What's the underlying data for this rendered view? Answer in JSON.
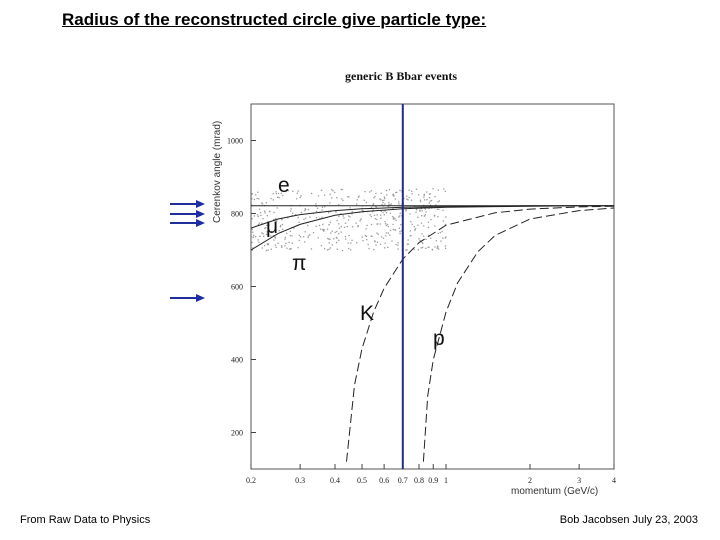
{
  "slide": {
    "title": "Radius of the reconstructed circle give particle type:",
    "footer_left": "From Raw Data to Physics",
    "footer_right": "Bob Jacobsen July 23, 2003"
  },
  "chart_data": {
    "type": "line",
    "title": "generic B Bbar events",
    "xlabel": "momentum (GeV/c)",
    "ylabel": "Cerenkov angle (mrad)",
    "x_scale": "log",
    "xlim": [
      0.2,
      4
    ],
    "ylim": [
      100,
      1100
    ],
    "x_ticks": [
      {
        "value": 0.2,
        "label": "0.2"
      },
      {
        "value": 0.3,
        "label": "0.3"
      },
      {
        "value": 0.4,
        "label": "0.4"
      },
      {
        "value": 0.5,
        "label": "0.5"
      },
      {
        "value": 0.6,
        "label": "0.6"
      },
      {
        "value": 0.7,
        "label": "0.7"
      },
      {
        "value": 0.8,
        "label": "0.8"
      },
      {
        "value": 0.9,
        "label": "0.9"
      },
      {
        "value": 1,
        "label": "1"
      },
      {
        "value": 2,
        "label": "2"
      },
      {
        "value": 3,
        "label": "3"
      },
      {
        "value": 4,
        "label": "4"
      }
    ],
    "y_ticks": [
      {
        "value": 200,
        "label": "200"
      },
      {
        "value": 400,
        "label": "400"
      },
      {
        "value": 600,
        "label": "600"
      },
      {
        "value": 800,
        "label": "800"
      },
      {
        "value": 1000,
        "label": "1000"
      }
    ],
    "series": [
      {
        "name": "e",
        "x": [
          0.2,
          0.3,
          0.5,
          0.8,
          1.2,
          2,
          4
        ],
        "y": [
          821,
          821,
          821,
          821,
          821,
          821,
          821
        ]
      },
      {
        "name": "μ",
        "x": [
          0.2,
          0.25,
          0.3,
          0.4,
          0.5,
          0.7,
          1,
          1.5,
          2,
          3,
          4
        ],
        "y": [
          760,
          785,
          797,
          808,
          813,
          817,
          819,
          820,
          821,
          821,
          821
        ]
      },
      {
        "name": "π",
        "x": [
          0.2,
          0.25,
          0.3,
          0.4,
          0.5,
          0.7,
          1,
          1.5,
          2,
          3,
          4
        ],
        "y": [
          700,
          745,
          770,
          795,
          805,
          813,
          817,
          819,
          820,
          821,
          821
        ]
      },
      {
        "name": "K",
        "x": [
          0.44,
          0.47,
          0.5,
          0.55,
          0.6,
          0.7,
          0.8,
          1,
          1.5,
          2,
          3,
          4
        ],
        "y": [
          120,
          330,
          430,
          530,
          595,
          675,
          720,
          768,
          802,
          812,
          818,
          820
        ]
      },
      {
        "name": "p",
        "x": [
          0.83,
          0.86,
          0.9,
          1,
          1.1,
          1.3,
          1.5,
          2,
          3,
          4
        ],
        "y": [
          120,
          300,
          400,
          530,
          610,
          695,
          740,
          785,
          808,
          815
        ]
      }
    ],
    "vertical_marker": {
      "x": 0.7
    },
    "arrow_markers": [
      {
        "series": "e",
        "y": 821
      },
      {
        "series": "μ",
        "y": 810
      },
      {
        "series": "π",
        "y": 800
      },
      {
        "series": "K",
        "y": 638
      }
    ],
    "colors": {
      "marker_line": "#1f2f7a",
      "arrows": "#1f2f9a",
      "curves": "#222222"
    },
    "grid": false
  }
}
